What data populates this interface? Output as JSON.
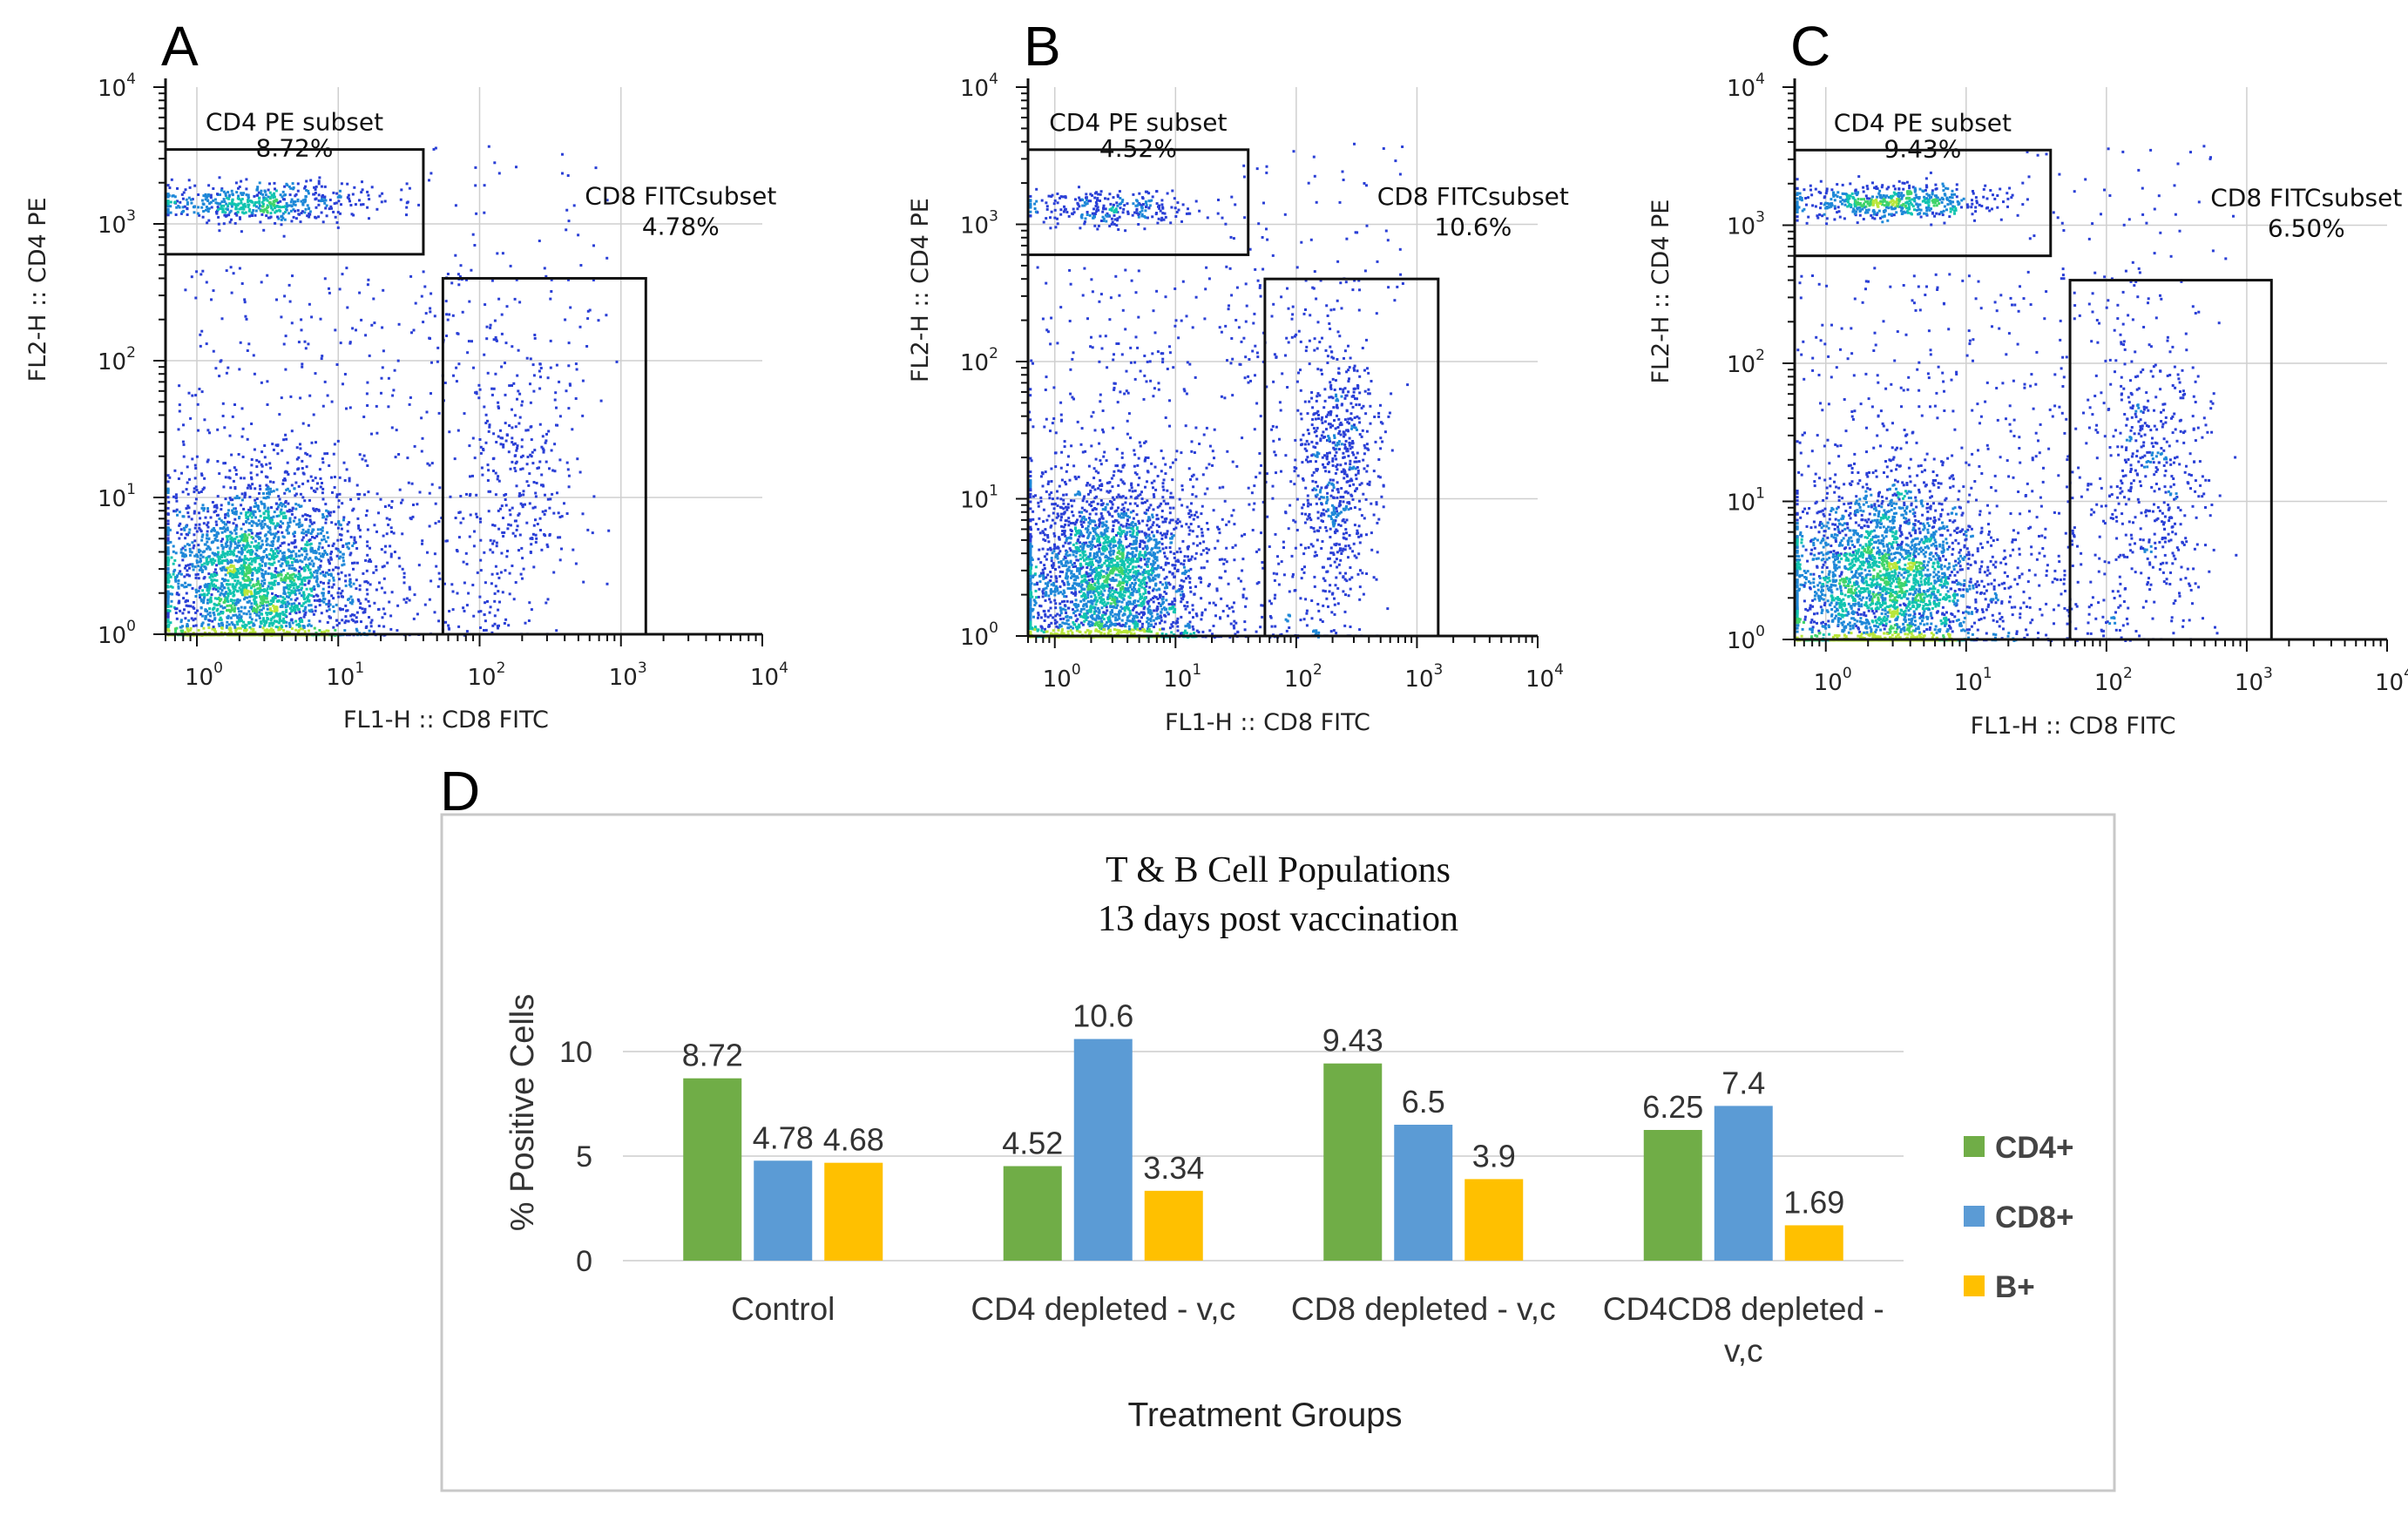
{
  "chart_data": [
    {
      "type": "scatter",
      "panel": "A",
      "xlabel": "FL1-H :: CD8 FITC",
      "ylabel": "FL2-H :: CD4 PE",
      "x_scale": "log",
      "y_scale": "log",
      "xlim": [
        0.6,
        10000
      ],
      "ylim": [
        1,
        10000
      ],
      "gates": [
        {
          "name": "CD4 PE subset",
          "percent": "8.72%",
          "x_range": [
            0.6,
            40
          ],
          "y_range": [
            600,
            3500
          ]
        },
        {
          "name": "CD8 FITCsubset",
          "percent": "4.78%",
          "x_range": [
            55,
            1500
          ],
          "y_range": [
            1,
            400
          ]
        }
      ]
    },
    {
      "type": "scatter",
      "panel": "B",
      "xlabel": "FL1-H :: CD8 FITC",
      "ylabel": "FL2-H :: CD4 PE",
      "x_scale": "log",
      "y_scale": "log",
      "xlim": [
        0.6,
        10000
      ],
      "ylim": [
        1,
        10000
      ],
      "gates": [
        {
          "name": "CD4 PE subset",
          "percent": "4.52%",
          "x_range": [
            0.6,
            40
          ],
          "y_range": [
            600,
            3500
          ]
        },
        {
          "name": "CD8 FITCsubset",
          "percent": "10.6%",
          "x_range": [
            55,
            1500
          ],
          "y_range": [
            1,
            400
          ]
        }
      ]
    },
    {
      "type": "scatter",
      "panel": "C",
      "xlabel": "FL1-H :: CD8 FITC",
      "ylabel": "FL2-H :: CD4 PE",
      "x_scale": "log",
      "y_scale": "log",
      "xlim": [
        0.6,
        10000
      ],
      "ylim": [
        1,
        10000
      ],
      "gates": [
        {
          "name": "CD4 PE subset",
          "percent": "9.43%",
          "x_range": [
            0.6,
            40
          ],
          "y_range": [
            600,
            3500
          ]
        },
        {
          "name": "CD8 FITCsubset",
          "percent": "6.50%",
          "x_range": [
            55,
            1500
          ],
          "y_range": [
            1,
            400
          ]
        }
      ]
    },
    {
      "type": "bar",
      "panel": "D",
      "title": "T & B Cell Populations",
      "subtitle": "13 days post vaccination",
      "xlabel": "Treatment Groups",
      "ylabel": "% Positive Cells",
      "ylim": [
        0,
        12
      ],
      "yticks": [
        0,
        5,
        10
      ],
      "categories": [
        [
          "Control"
        ],
        [
          "CD4 depleted - v,c"
        ],
        [
          "CD8 depleted - v,c"
        ],
        [
          "CD4CD8 depleted -",
          "v,c"
        ]
      ],
      "series": [
        {
          "name": "CD4+",
          "color": "#70ad47",
          "values": [
            8.72,
            4.52,
            9.43,
            6.25
          ],
          "labels": [
            "8.72",
            "4.52",
            "9.43",
            "6.25"
          ]
        },
        {
          "name": "CD8+",
          "color": "#5b9bd5",
          "values": [
            4.78,
            10.6,
            6.5,
            7.4
          ],
          "labels": [
            "4.78",
            "10.6",
            "6.5",
            "7.4"
          ]
        },
        {
          "name": "B+",
          "color": "#ffc000",
          "values": [
            4.68,
            3.34,
            3.9,
            1.69
          ],
          "labels": [
            "4.68",
            "3.34",
            "3.9",
            "1.69"
          ]
        }
      ],
      "grid": true,
      "legend": "right"
    }
  ]
}
